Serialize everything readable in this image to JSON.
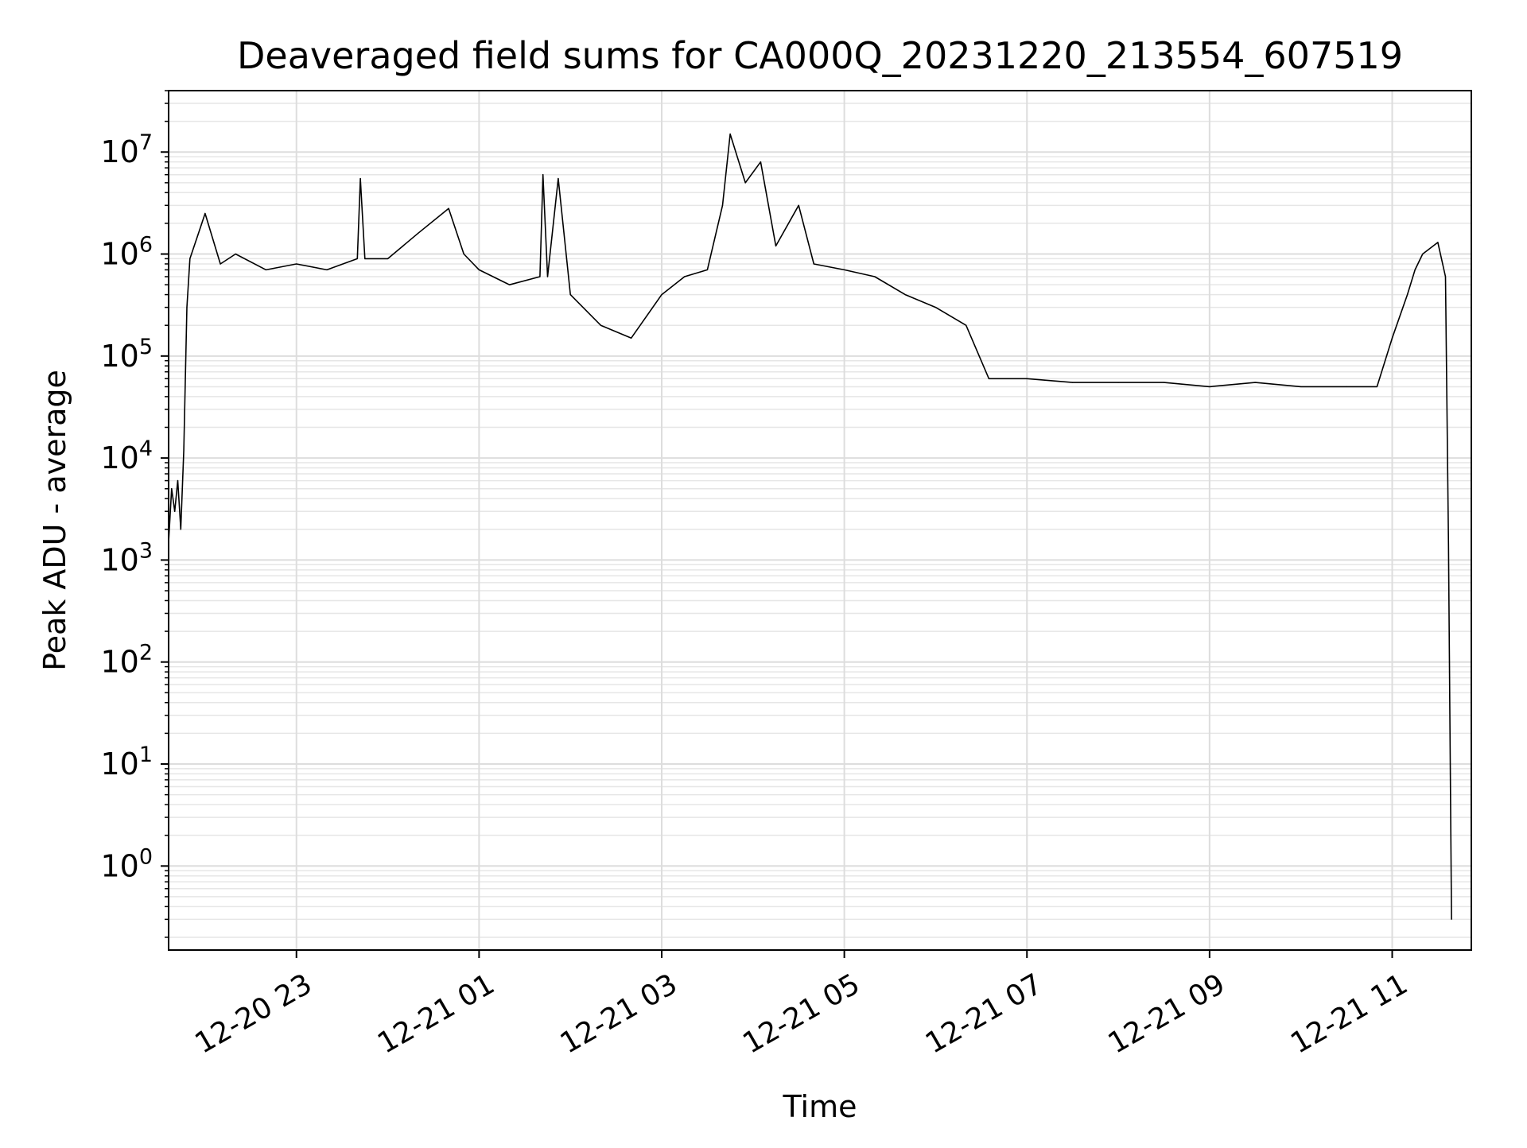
{
  "chart_data": {
    "type": "line",
    "title": "Deaveraged field sums for CA000Q_20231220_213554_607519",
    "xlabel": "Time",
    "ylabel": "Peak ADU - average",
    "yscale": "log",
    "grid": true,
    "x_range": [
      "2023-12-20 21:36",
      "2023-12-21 11:52"
    ],
    "ylim": [
      0.15,
      40000000
    ],
    "x_ticks": [
      {
        "value": "2023-12-20 23:00",
        "label": "12-20 23"
      },
      {
        "value": "2023-12-21 01:00",
        "label": "12-21 01"
      },
      {
        "value": "2023-12-21 03:00",
        "label": "12-21 03"
      },
      {
        "value": "2023-12-21 05:00",
        "label": "12-21 05"
      },
      {
        "value": "2023-12-21 07:00",
        "label": "12-21 07"
      },
      {
        "value": "2023-12-21 09:00",
        "label": "12-21 09"
      },
      {
        "value": "2023-12-21 11:00",
        "label": "12-21 11"
      }
    ],
    "y_ticks": [
      {
        "value": 1,
        "base": "10",
        "exp": "0"
      },
      {
        "value": 10,
        "base": "10",
        "exp": "1"
      },
      {
        "value": 100,
        "base": "10",
        "exp": "2"
      },
      {
        "value": 1000,
        "base": "10",
        "exp": "3"
      },
      {
        "value": 10000,
        "base": "10",
        "exp": "4"
      },
      {
        "value": 100000,
        "base": "10",
        "exp": "5"
      },
      {
        "value": 1000000,
        "base": "10",
        "exp": "6"
      },
      {
        "value": 10000000,
        "base": "10",
        "exp": "7"
      }
    ],
    "series": [
      {
        "color": "#000000",
        "points": [
          [
            "2023-12-20 21:36",
            1500
          ],
          [
            "2023-12-20 21:38",
            5000
          ],
          [
            "2023-12-20 21:40",
            3000
          ],
          [
            "2023-12-20 21:42",
            6000
          ],
          [
            "2023-12-20 21:44",
            2000
          ],
          [
            "2023-12-20 21:46",
            12000
          ],
          [
            "2023-12-20 21:48",
            300000
          ],
          [
            "2023-12-20 21:50",
            900000
          ],
          [
            "2023-12-20 21:55",
            1500000
          ],
          [
            "2023-12-20 22:00",
            2500000
          ],
          [
            "2023-12-20 22:10",
            800000
          ],
          [
            "2023-12-20 22:20",
            1000000
          ],
          [
            "2023-12-20 22:40",
            700000
          ],
          [
            "2023-12-20 23:00",
            800000
          ],
          [
            "2023-12-20 23:20",
            700000
          ],
          [
            "2023-12-20 23:40",
            900000
          ],
          [
            "2023-12-20 23:42",
            5500000
          ],
          [
            "2023-12-20 23:45",
            900000
          ],
          [
            "2023-12-21 00:00",
            900000
          ],
          [
            "2023-12-21 00:20",
            1600000
          ],
          [
            "2023-12-21 00:40",
            2800000
          ],
          [
            "2023-12-21 00:50",
            1000000
          ],
          [
            "2023-12-21 01:00",
            700000
          ],
          [
            "2023-12-21 01:20",
            500000
          ],
          [
            "2023-12-21 01:40",
            600000
          ],
          [
            "2023-12-21 01:42",
            6000000
          ],
          [
            "2023-12-21 01:45",
            600000
          ],
          [
            "2023-12-21 01:52",
            5500000
          ],
          [
            "2023-12-21 02:00",
            400000
          ],
          [
            "2023-12-21 02:20",
            200000
          ],
          [
            "2023-12-21 02:40",
            150000
          ],
          [
            "2023-12-21 03:00",
            400000
          ],
          [
            "2023-12-21 03:15",
            600000
          ],
          [
            "2023-12-21 03:30",
            700000
          ],
          [
            "2023-12-21 03:40",
            3000000
          ],
          [
            "2023-12-21 03:45",
            15000000
          ],
          [
            "2023-12-21 03:55",
            5000000
          ],
          [
            "2023-12-21 04:05",
            8000000
          ],
          [
            "2023-12-21 04:15",
            1200000
          ],
          [
            "2023-12-21 04:30",
            3000000
          ],
          [
            "2023-12-21 04:40",
            800000
          ],
          [
            "2023-12-21 05:00",
            700000
          ],
          [
            "2023-12-21 05:20",
            600000
          ],
          [
            "2023-12-21 05:40",
            400000
          ],
          [
            "2023-12-21 06:00",
            300000
          ],
          [
            "2023-12-21 06:20",
            200000
          ],
          [
            "2023-12-21 06:35",
            60000
          ],
          [
            "2023-12-21 07:00",
            60000
          ],
          [
            "2023-12-21 07:30",
            55000
          ],
          [
            "2023-12-21 08:00",
            55000
          ],
          [
            "2023-12-21 08:30",
            55000
          ],
          [
            "2023-12-21 09:00",
            50000
          ],
          [
            "2023-12-21 09:30",
            55000
          ],
          [
            "2023-12-21 10:00",
            50000
          ],
          [
            "2023-12-21 10:30",
            50000
          ],
          [
            "2023-12-21 10:50",
            50000
          ],
          [
            "2023-12-21 11:00",
            150000
          ],
          [
            "2023-12-21 11:10",
            400000
          ],
          [
            "2023-12-21 11:15",
            700000
          ],
          [
            "2023-12-21 11:20",
            1000000
          ],
          [
            "2023-12-21 11:30",
            1300000
          ],
          [
            "2023-12-21 11:35",
            600000
          ],
          [
            "2023-12-21 11:37",
            1400
          ],
          [
            "2023-12-21 11:38",
            20
          ],
          [
            "2023-12-21 11:39",
            0.3
          ]
        ]
      }
    ]
  }
}
